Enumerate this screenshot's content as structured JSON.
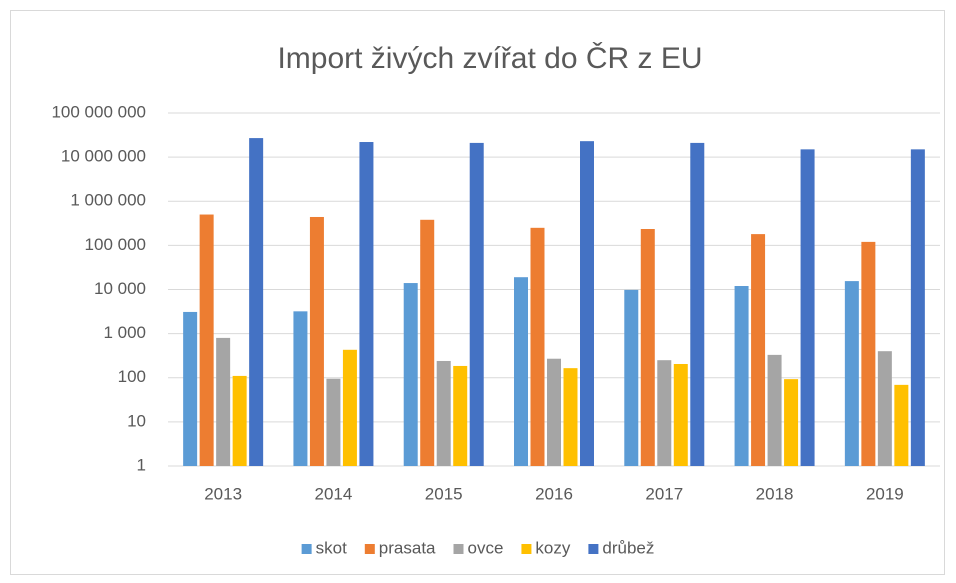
{
  "chart_data": {
    "type": "bar",
    "title": "Import živých zvířat do ČR z EU",
    "categories": [
      "2013",
      "2014",
      "2015",
      "2016",
      "2017",
      "2018",
      "2019"
    ],
    "series": [
      {
        "name": "skot",
        "color": "#5b9bd5",
        "values": [
          3100,
          3200,
          14000,
          19000,
          9800,
          12000,
          15500
        ]
      },
      {
        "name": "prasata",
        "color": "#ed7d31",
        "values": [
          500000,
          440000,
          380000,
          250000,
          235000,
          180000,
          120000
        ]
      },
      {
        "name": "ovce",
        "color": "#a5a5a5",
        "values": [
          800,
          95,
          240,
          270,
          250,
          330,
          400
        ]
      },
      {
        "name": "kozy",
        "color": "#ffc000",
        "values": [
          110,
          430,
          185,
          165,
          205,
          93,
          69
        ]
      },
      {
        "name": "drůbež",
        "color": "#4472c4",
        "values": [
          27000000,
          22000000,
          21000000,
          23000000,
          21000000,
          15000000,
          15000000
        ]
      }
    ],
    "ylim": [
      1,
      100000000
    ],
    "log_scale": true,
    "grid": true,
    "legend": "bottom",
    "yticks": [
      1,
      10,
      100,
      {
        "value": 1000,
        "label": "1 000"
      },
      {
        "value": 10000,
        "label": "10 000"
      },
      {
        "value": 100000,
        "label": "100 000"
      },
      {
        "value": 1000000,
        "label": "1 000 000"
      },
      {
        "value": 10000000,
        "label": "10 000 000"
      },
      {
        "value": 100000000,
        "label": "100 000 000"
      }
    ]
  }
}
